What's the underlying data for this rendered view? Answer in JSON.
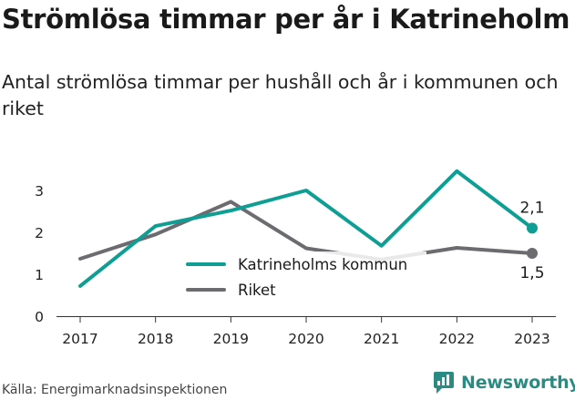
{
  "page": {
    "title": "Strömlösa timmar per år i Katrineholm",
    "subtitle": "Antal strömlösa timmar per hushåll och år i kommunen och riket",
    "source": "Källa: Energimarknadsinspektionen",
    "brand": "Newsworthy"
  },
  "colors": {
    "katrineholm": "#0e9e94",
    "riket": "#6b6b70",
    "text": "#1a1a1a",
    "brand": "#2a8b83"
  },
  "chart_data": {
    "type": "line",
    "categories": [
      "2017",
      "2018",
      "2019",
      "2020",
      "2021",
      "2022",
      "2023"
    ],
    "ylim": [
      0,
      3.5
    ],
    "yticks": [
      "0",
      "1",
      "2",
      "3"
    ],
    "grid": false,
    "legend": "center",
    "series": [
      {
        "name": "Katrineholms kommun",
        "values": [
          0.72,
          2.15,
          2.52,
          3.0,
          1.68,
          3.46,
          2.1
        ],
        "end_label": "2,1"
      },
      {
        "name": "Riket",
        "values": [
          1.37,
          1.95,
          2.73,
          1.62,
          1.35,
          1.63,
          1.5
        ],
        "end_label": "1,5"
      }
    ]
  }
}
